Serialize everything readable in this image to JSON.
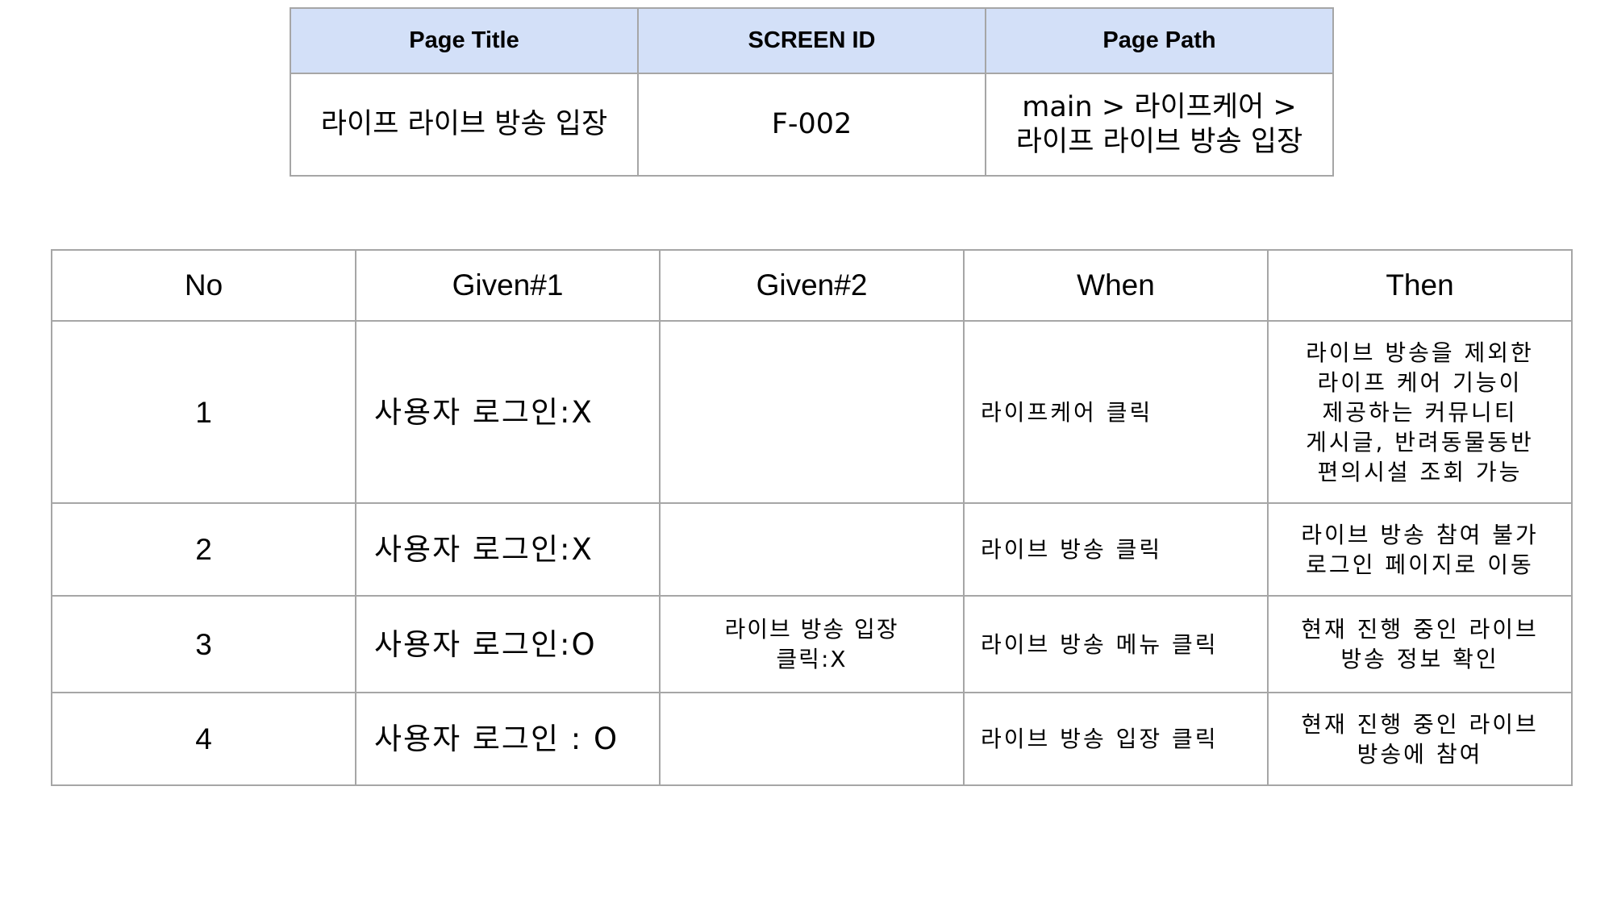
{
  "meta": {
    "headers": [
      "Page Title",
      "SCREEN ID",
      "Page Path"
    ],
    "page_title": "라이프 라이브 방송 입장",
    "screen_id": "F-002",
    "page_path": "main > 라이프케어 >\n라이프 라이브 방송 입장"
  },
  "scenarios": {
    "headers": [
      "No",
      "Given#1",
      "Given#2",
      "When",
      "Then"
    ],
    "rows": [
      {
        "no": "1",
        "given1": "사용자 로그인:X",
        "given2": "",
        "when": "라이프케어 클릭",
        "then": "라이브 방송을 제외한\n라이프 케어 기능이\n제공하는 커뮤니티\n게시글, 반려동물동반\n편의시설 조회 가능"
      },
      {
        "no": "2",
        "given1": "사용자 로그인:X",
        "given2": "",
        "when": "라이브 방송 클릭",
        "then": "라이브 방송 참여 불가\n로그인 페이지로 이동"
      },
      {
        "no": "3",
        "given1": "사용자 로그인:O",
        "given2": "라이브 방송 입장\n클릭:X",
        "when": "라이브 방송 메뉴 클릭",
        "then": "현재 진행 중인 라이브\n방송 정보 확인"
      },
      {
        "no": "4",
        "given1": "사용자 로그인 : O",
        "given2": "",
        "when": "라이브 방송 입장 클릭",
        "then": "현재 진행 중인 라이브\n방송에 참여"
      }
    ]
  }
}
